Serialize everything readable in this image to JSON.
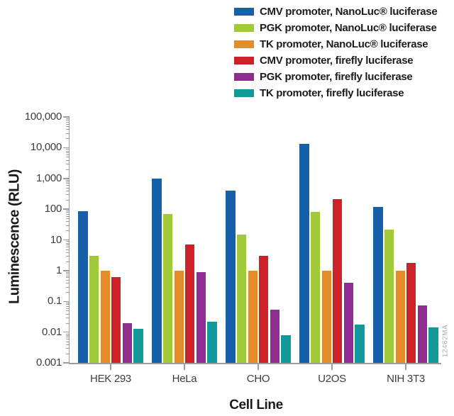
{
  "chart_data": {
    "type": "bar",
    "yscale": "log",
    "title": "",
    "xlabel": "Cell Line",
    "ylabel": "Luminescence (RLU)",
    "categories": [
      "HEK 293",
      "HeLa",
      "CHO",
      "U2OS",
      "NIH 3T3"
    ],
    "series": [
      {
        "name": "CMV promoter, NanoLuc® luciferase",
        "color": "#1560a8",
        "values": [
          85,
          1000,
          400,
          13000,
          120
        ]
      },
      {
        "name": "PGK promoter, NanoLuc® luciferase",
        "color": "#a2c93a",
        "values": [
          3,
          70,
          15,
          80,
          22
        ]
      },
      {
        "name": "TK promoter, NanoLuc® luciferase",
        "color": "#e28c2a",
        "values": [
          1,
          1,
          1,
          1,
          1
        ]
      },
      {
        "name": "CMV promoter, firefly luciferase",
        "color": "#cb2127",
        "values": [
          0.6,
          7,
          3,
          210,
          1.8
        ]
      },
      {
        "name": "PGK promoter, firefly luciferase",
        "color": "#8d2d8f",
        "values": [
          0.02,
          0.9,
          0.055,
          0.4,
          0.075
        ]
      },
      {
        "name": "TK promoter, firefly luciferase",
        "color": "#12999a",
        "values": [
          0.013,
          0.022,
          0.008,
          0.018,
          0.014
        ]
      }
    ],
    "ylim": [
      0.001,
      100000
    ],
    "ytick_labels": [
      "100,000",
      "10,000",
      "1,000",
      "100",
      "10",
      "1",
      "0.1",
      "0.01",
      "0.001"
    ],
    "legend_position": "top-right",
    "grid": false,
    "axis_color": "#9c9c9c"
  },
  "watermark": "12462MA"
}
